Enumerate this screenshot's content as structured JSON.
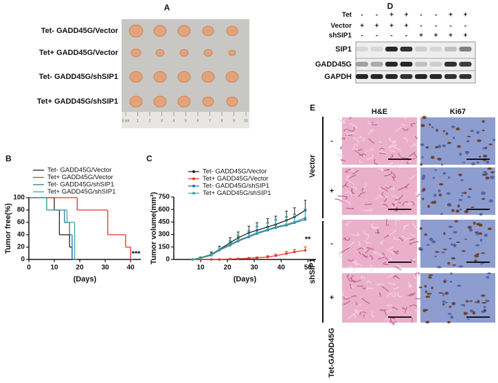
{
  "panel_a": {
    "label": "A",
    "rows": [
      "Tet- GADD45G/Vector",
      "Tet+ GADD45G/Vector",
      "Tet- GADD45G/shSIP1",
      "Tet+ GADD45G/shSIP1"
    ],
    "ruler": [
      "0 cm",
      "1",
      "2",
      "3",
      "4",
      "5",
      "6",
      "7",
      "8",
      "9",
      "10"
    ]
  },
  "panel_d": {
    "label": "D",
    "conditions": [
      {
        "name": "Tet",
        "signs": [
          "-",
          "-",
          "+",
          "+",
          "-",
          "-",
          "+",
          "+"
        ]
      },
      {
        "name": "Vector",
        "signs": [
          "+",
          "+",
          "+",
          "+",
          "-",
          "-",
          "-",
          "-"
        ]
      },
      {
        "name": "shSIP1",
        "signs": [
          "-",
          "-",
          "-",
          "-",
          "+",
          "+",
          "+",
          "+"
        ]
      }
    ],
    "bands": [
      "SIP1",
      "GADD45G",
      "GAPDH"
    ]
  },
  "panel_e": {
    "label": "E",
    "columns": [
      "H&E",
      "Ki67"
    ],
    "groups": [
      {
        "name": "Vector",
        "rows": [
          "-",
          "+"
        ]
      },
      {
        "name": "shSIP1",
        "rows": [
          "-",
          "+"
        ]
      }
    ],
    "footer": "Tet-GADD45G"
  },
  "chart_data": [
    {
      "type": "step",
      "panel_label": "B",
      "ylabel": "Tumor free(%)",
      "xlabel": "(Days)",
      "xlim": [
        0,
        44
      ],
      "xticks": [
        0,
        10,
        20,
        30,
        40
      ],
      "ylim": [
        0,
        100
      ],
      "yticks": [
        0,
        20,
        40,
        60,
        80,
        100
      ],
      "annotation": "***",
      "series": [
        {
          "name": "Tet- GADD45G/Vector",
          "color": "#222222",
          "x": [
            0,
            10,
            12,
            16,
            17
          ],
          "values": [
            100,
            80,
            40,
            20,
            0
          ]
        },
        {
          "name": "Tet+ GADD45G/Vector",
          "color": "#e8302a",
          "x": [
            0,
            19,
            31,
            38,
            40
          ],
          "values": [
            100,
            80,
            40,
            20,
            0
          ]
        },
        {
          "name": "Tet- GADD45G/shSIP1",
          "color": "#2f6fa8",
          "x": [
            0,
            7,
            14,
            16,
            17
          ],
          "values": [
            100,
            80,
            60,
            40,
            0
          ]
        },
        {
          "name": "Tet+ GADD45G/shSIP1",
          "color": "#3aa6a0",
          "x": [
            0,
            7,
            15,
            18
          ],
          "values": [
            100,
            80,
            60,
            0
          ]
        }
      ]
    },
    {
      "type": "line",
      "panel_label": "C",
      "ylabel": "Tumor volume(mm³)",
      "xlabel": "(Days)",
      "xlim": [
        0,
        53
      ],
      "xticks": [
        10,
        20,
        30,
        40,
        50
      ],
      "ylim": [
        0,
        750
      ],
      "yticks": [
        0,
        150,
        300,
        450,
        600,
        750
      ],
      "annotation": "**",
      "x": [
        7,
        10,
        14,
        17,
        21,
        24,
        28,
        31,
        35,
        38,
        42,
        45,
        49
      ],
      "series": [
        {
          "name": "Tet- GADD45G/Vector",
          "color": "#222222",
          "values": [
            0,
            20,
            60,
            120,
            200,
            260,
            320,
            350,
            390,
            420,
            470,
            510,
            590
          ],
          "errors": [
            0,
            10,
            30,
            40,
            60,
            70,
            80,
            90,
            100,
            100,
            110,
            110,
            120
          ]
        },
        {
          "name": "Tet+ GADD45G/Vector",
          "color": "#e8302a",
          "values": [
            0,
            0,
            0,
            0,
            5,
            8,
            15,
            20,
            30,
            45,
            70,
            90,
            110
          ],
          "errors": [
            0,
            0,
            0,
            0,
            3,
            5,
            8,
            10,
            15,
            20,
            25,
            30,
            40
          ]
        },
        {
          "name": "Tet- GADD45G/shSIP1",
          "color": "#2f6fa8",
          "values": [
            0,
            15,
            50,
            110,
            170,
            220,
            270,
            310,
            350,
            380,
            410,
            440,
            480
          ],
          "errors": [
            0,
            10,
            25,
            40,
            50,
            60,
            70,
            80,
            85,
            90,
            95,
            100,
            110
          ]
        },
        {
          "name": "Tet+ GADD45G/shSIP1",
          "color": "#3aa6a0",
          "values": [
            0,
            15,
            55,
            115,
            180,
            230,
            280,
            320,
            360,
            390,
            420,
            450,
            500
          ],
          "errors": [
            0,
            10,
            25,
            40,
            50,
            60,
            70,
            80,
            85,
            90,
            95,
            100,
            110
          ]
        }
      ]
    }
  ]
}
